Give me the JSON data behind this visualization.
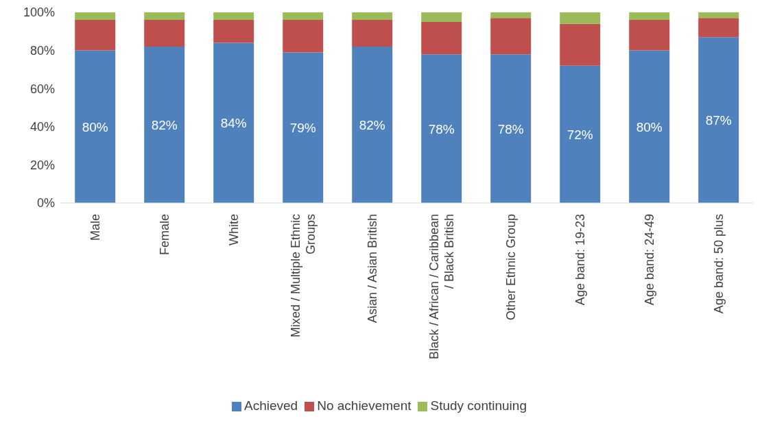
{
  "chart_data": {
    "type": "bar",
    "stacked": true,
    "categories": [
      "Male",
      "Female",
      "White",
      "Mixed / Multiple Ethnic Groups",
      "Asian / Asian British",
      "Black / African / Caribbean / Black British",
      "Other Ethnic Group",
      "Age band: 19-23",
      "Age band: 24-49",
      "Age band: 50 plus"
    ],
    "series": [
      {
        "name": "Achieved",
        "color": "#4f81bd",
        "values": [
          80,
          82,
          84,
          79,
          82,
          78,
          78,
          72,
          80,
          87
        ],
        "value_labels": [
          "80%",
          "82%",
          "84%",
          "79%",
          "82%",
          "78%",
          "78%",
          "72%",
          "80%",
          "87%"
        ]
      },
      {
        "name": "No achievement",
        "color": "#c0504d",
        "values": [
          16,
          14,
          12,
          17,
          14,
          17,
          19,
          22,
          16,
          10
        ]
      },
      {
        "name": "Study continuing",
        "color": "#9bbb59",
        "values": [
          4,
          4,
          4,
          4,
          4,
          5,
          3,
          6,
          4,
          3
        ]
      }
    ],
    "ylim": [
      0,
      100
    ],
    "yticks": [
      {
        "value": 0,
        "label": "0%"
      },
      {
        "value": 20,
        "label": "20%"
      },
      {
        "value": 40,
        "label": "40%"
      },
      {
        "value": 60,
        "label": "60%"
      },
      {
        "value": 80,
        "label": "80%"
      },
      {
        "value": 100,
        "label": "100%"
      }
    ],
    "grid": false,
    "legend": "bottom"
  }
}
